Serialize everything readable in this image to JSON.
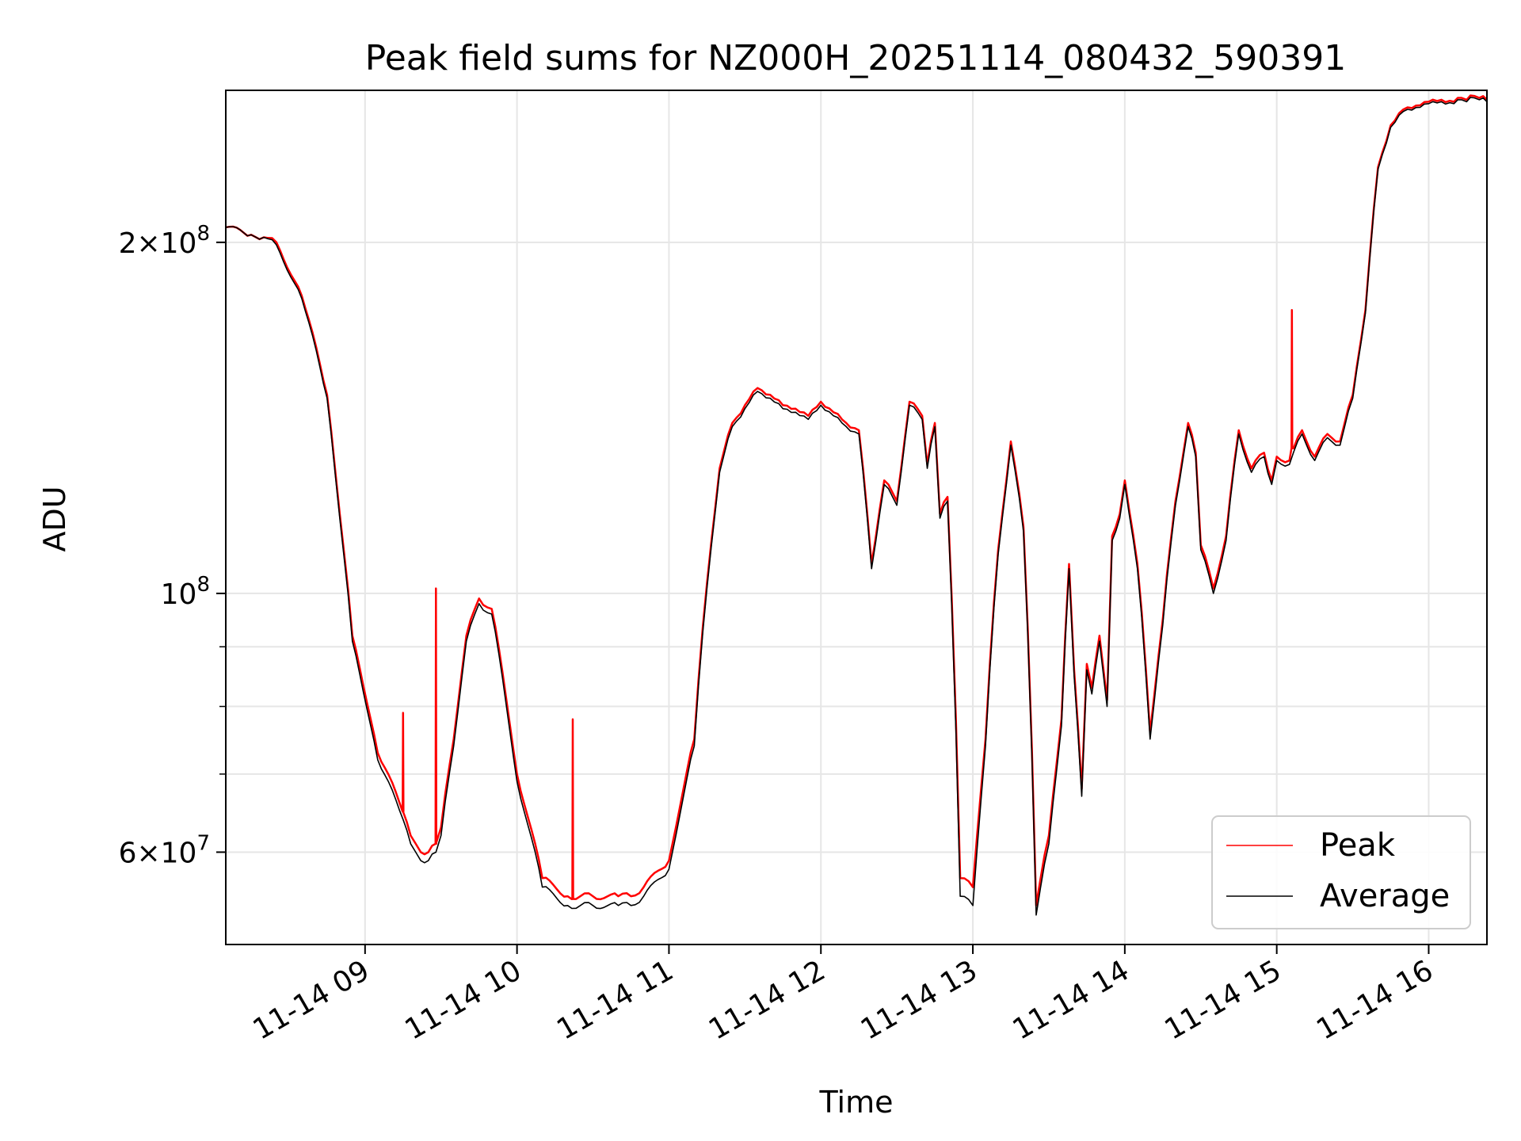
{
  "chart_data": {
    "type": "line",
    "title": "Peak field sums for NZ000H_20251114_080432_590391",
    "xlabel": "Time",
    "ylabel": "ADU",
    "yscale": "log",
    "ylim": [
      50000000,
      270000000
    ],
    "xlim": [
      "2025-11-14 08:05",
      "2025-11-14 16:23"
    ],
    "grid": true,
    "legend_position": "lower right",
    "x_ticks": [
      {
        "value": "2025-11-14 09:00",
        "label": "11-14 09"
      },
      {
        "value": "2025-11-14 10:00",
        "label": "11-14 10"
      },
      {
        "value": "2025-11-14 11:00",
        "label": "11-14 11"
      },
      {
        "value": "2025-11-14 12:00",
        "label": "11-14 12"
      },
      {
        "value": "2025-11-14 13:00",
        "label": "11-14 13"
      },
      {
        "value": "2025-11-14 14:00",
        "label": "11-14 14"
      },
      {
        "value": "2025-11-14 15:00",
        "label": "11-14 15"
      },
      {
        "value": "2025-11-14 16:00",
        "label": "11-14 16"
      }
    ],
    "y_major_ticks": [
      {
        "value": 60000000,
        "mantissa": "6",
        "exponent": "7"
      },
      {
        "value": 100000000,
        "mantissa": "",
        "exponent": "8"
      },
      {
        "value": 200000000,
        "mantissa": "2",
        "exponent": "8"
      }
    ],
    "y_minor_ticks": [
      70000000,
      80000000,
      90000000
    ],
    "times": [
      "08:05",
      "08:15",
      "08:20",
      "08:25",
      "08:35",
      "08:45",
      "08:50",
      "08:55",
      "09:05",
      "09:15",
      "09:18",
      "09:20",
      "09:22",
      "09:25",
      "09:28",
      "09:30",
      "09:35",
      "09:40",
      "09:45",
      "09:50",
      "10:00",
      "10:10",
      "10:20",
      "10:25",
      "10:30",
      "10:40",
      "10:45",
      "10:50",
      "11:00",
      "11:10",
      "11:15",
      "11:20",
      "11:25",
      "11:30",
      "11:35",
      "11:40",
      "11:45",
      "11:50",
      "11:55",
      "12:00",
      "12:05",
      "12:10",
      "12:15",
      "12:20",
      "12:25",
      "12:30",
      "12:35",
      "12:40",
      "12:42",
      "12:45",
      "12:47",
      "12:50",
      "12:55",
      "13:00",
      "13:05",
      "13:10",
      "13:15",
      "13:20",
      "13:25",
      "13:30",
      "13:35",
      "13:38",
      "13:40",
      "13:43",
      "13:45",
      "13:47",
      "13:50",
      "13:53",
      "13:55",
      "13:58",
      "14:00",
      "14:05",
      "14:10",
      "14:15",
      "14:20",
      "14:25",
      "14:28",
      "14:30",
      "14:35",
      "14:40",
      "14:45",
      "14:50",
      "14:55",
      "14:58",
      "15:00",
      "15:05",
      "15:10",
      "15:15",
      "15:20",
      "15:25",
      "15:30",
      "15:35",
      "15:40",
      "15:45",
      "15:50",
      "15:55",
      "16:00",
      "16:05",
      "16:10",
      "16:13",
      "16:15",
      "16:18",
      "16:20",
      "16:23"
    ],
    "series": [
      {
        "name": "Peak",
        "color": "#ff0000",
        "values": [
          206,
          203,
          202,
          200,
          180,
          148,
          117,
          92,
          73,
          65,
          62,
          61,
          60,
          60,
          61,
          63,
          75,
          92,
          99,
          97,
          70,
          57,
          55,
          55,
          55,
          55,
          55,
          56,
          59,
          75,
          102,
          128,
          140,
          145,
          150,
          148,
          145,
          144,
          142,
          146,
          143,
          140,
          138,
          106,
          125,
          120,
          146,
          142,
          129,
          140,
          117,
          121,
          57,
          56,
          75,
          109,
          135,
          114,
          54,
          62,
          78,
          106,
          86,
          68,
          87,
          83,
          92,
          81,
          112,
          117,
          125,
          106,
          76,
          95,
          120,
          140,
          132,
          110,
          101,
          112,
          138,
          128,
          132,
          125,
          131,
          130,
          138,
          131,
          137,
          135,
          148,
          175,
          232,
          252,
          260,
          262,
          264,
          265,
          264,
          266,
          265,
          267,
          266,
          265
        ],
        "spikes": [
          {
            "time": "09:15",
            "value": 79000000
          },
          {
            "time": "09:28",
            "value": 101000000
          },
          {
            "time": "10:22",
            "value": 78000000
          },
          {
            "time": "15:06",
            "value": 175000000
          }
        ]
      },
      {
        "name": "Average",
        "color": "#000000",
        "values": [
          206,
          203,
          202,
          199,
          179,
          147,
          116,
          91,
          72,
          64,
          61,
          60,
          59,
          59,
          60,
          62,
          74,
          91,
          98,
          96,
          69,
          56,
          54,
          54,
          54,
          54,
          54,
          55,
          58,
          74,
          101,
          127,
          139,
          144,
          149,
          147,
          144,
          143,
          141,
          145,
          142,
          139,
          137,
          105,
          124,
          119,
          145,
          141,
          128,
          139,
          116,
          120,
          55,
          54,
          74,
          108,
          134,
          113,
          53,
          61,
          77,
          105,
          85,
          67,
          86,
          82,
          91,
          80,
          111,
          116,
          124,
          105,
          75,
          94,
          119,
          139,
          131,
          109,
          100,
          111,
          137,
          127,
          131,
          124,
          130,
          129,
          137,
          130,
          136,
          134,
          147,
          174,
          231,
          251,
          259,
          261,
          263,
          264,
          263,
          265,
          264,
          266,
          265,
          264
        ]
      }
    ],
    "values_unit_multiplier": 1000000
  }
}
